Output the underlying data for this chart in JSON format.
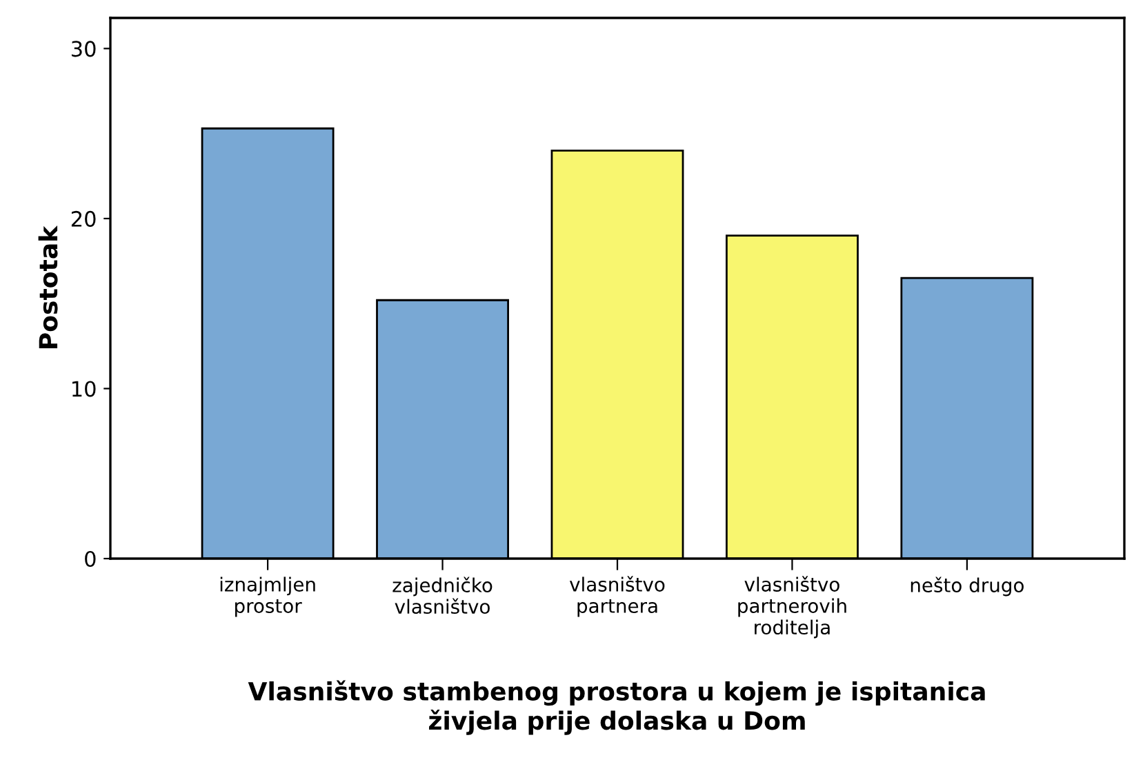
{
  "chart_data": {
    "type": "bar",
    "categories": [
      "iznajmljen\nprostor",
      "zajedničko\nvlasništvo",
      "vlasništvo\npartnera",
      "vlasništvo\npartnerovih\nroditelja",
      "nešto drugo"
    ],
    "values": [
      25.3,
      15.2,
      24.0,
      19.0,
      16.5
    ],
    "colors": [
      "#79a8d4",
      "#79a8d4",
      "#f8f66f",
      "#f8f66f",
      "#79a8d4"
    ],
    "xlabel": "Vlasništvo stambenog prostora u kojem je ispitanica\nživjela prije dolaska u Dom",
    "ylabel": "Postotak",
    "ylim": [
      0,
      31.8
    ],
    "yticks": [
      0,
      10,
      20,
      30
    ],
    "grid": false,
    "legend": false
  }
}
